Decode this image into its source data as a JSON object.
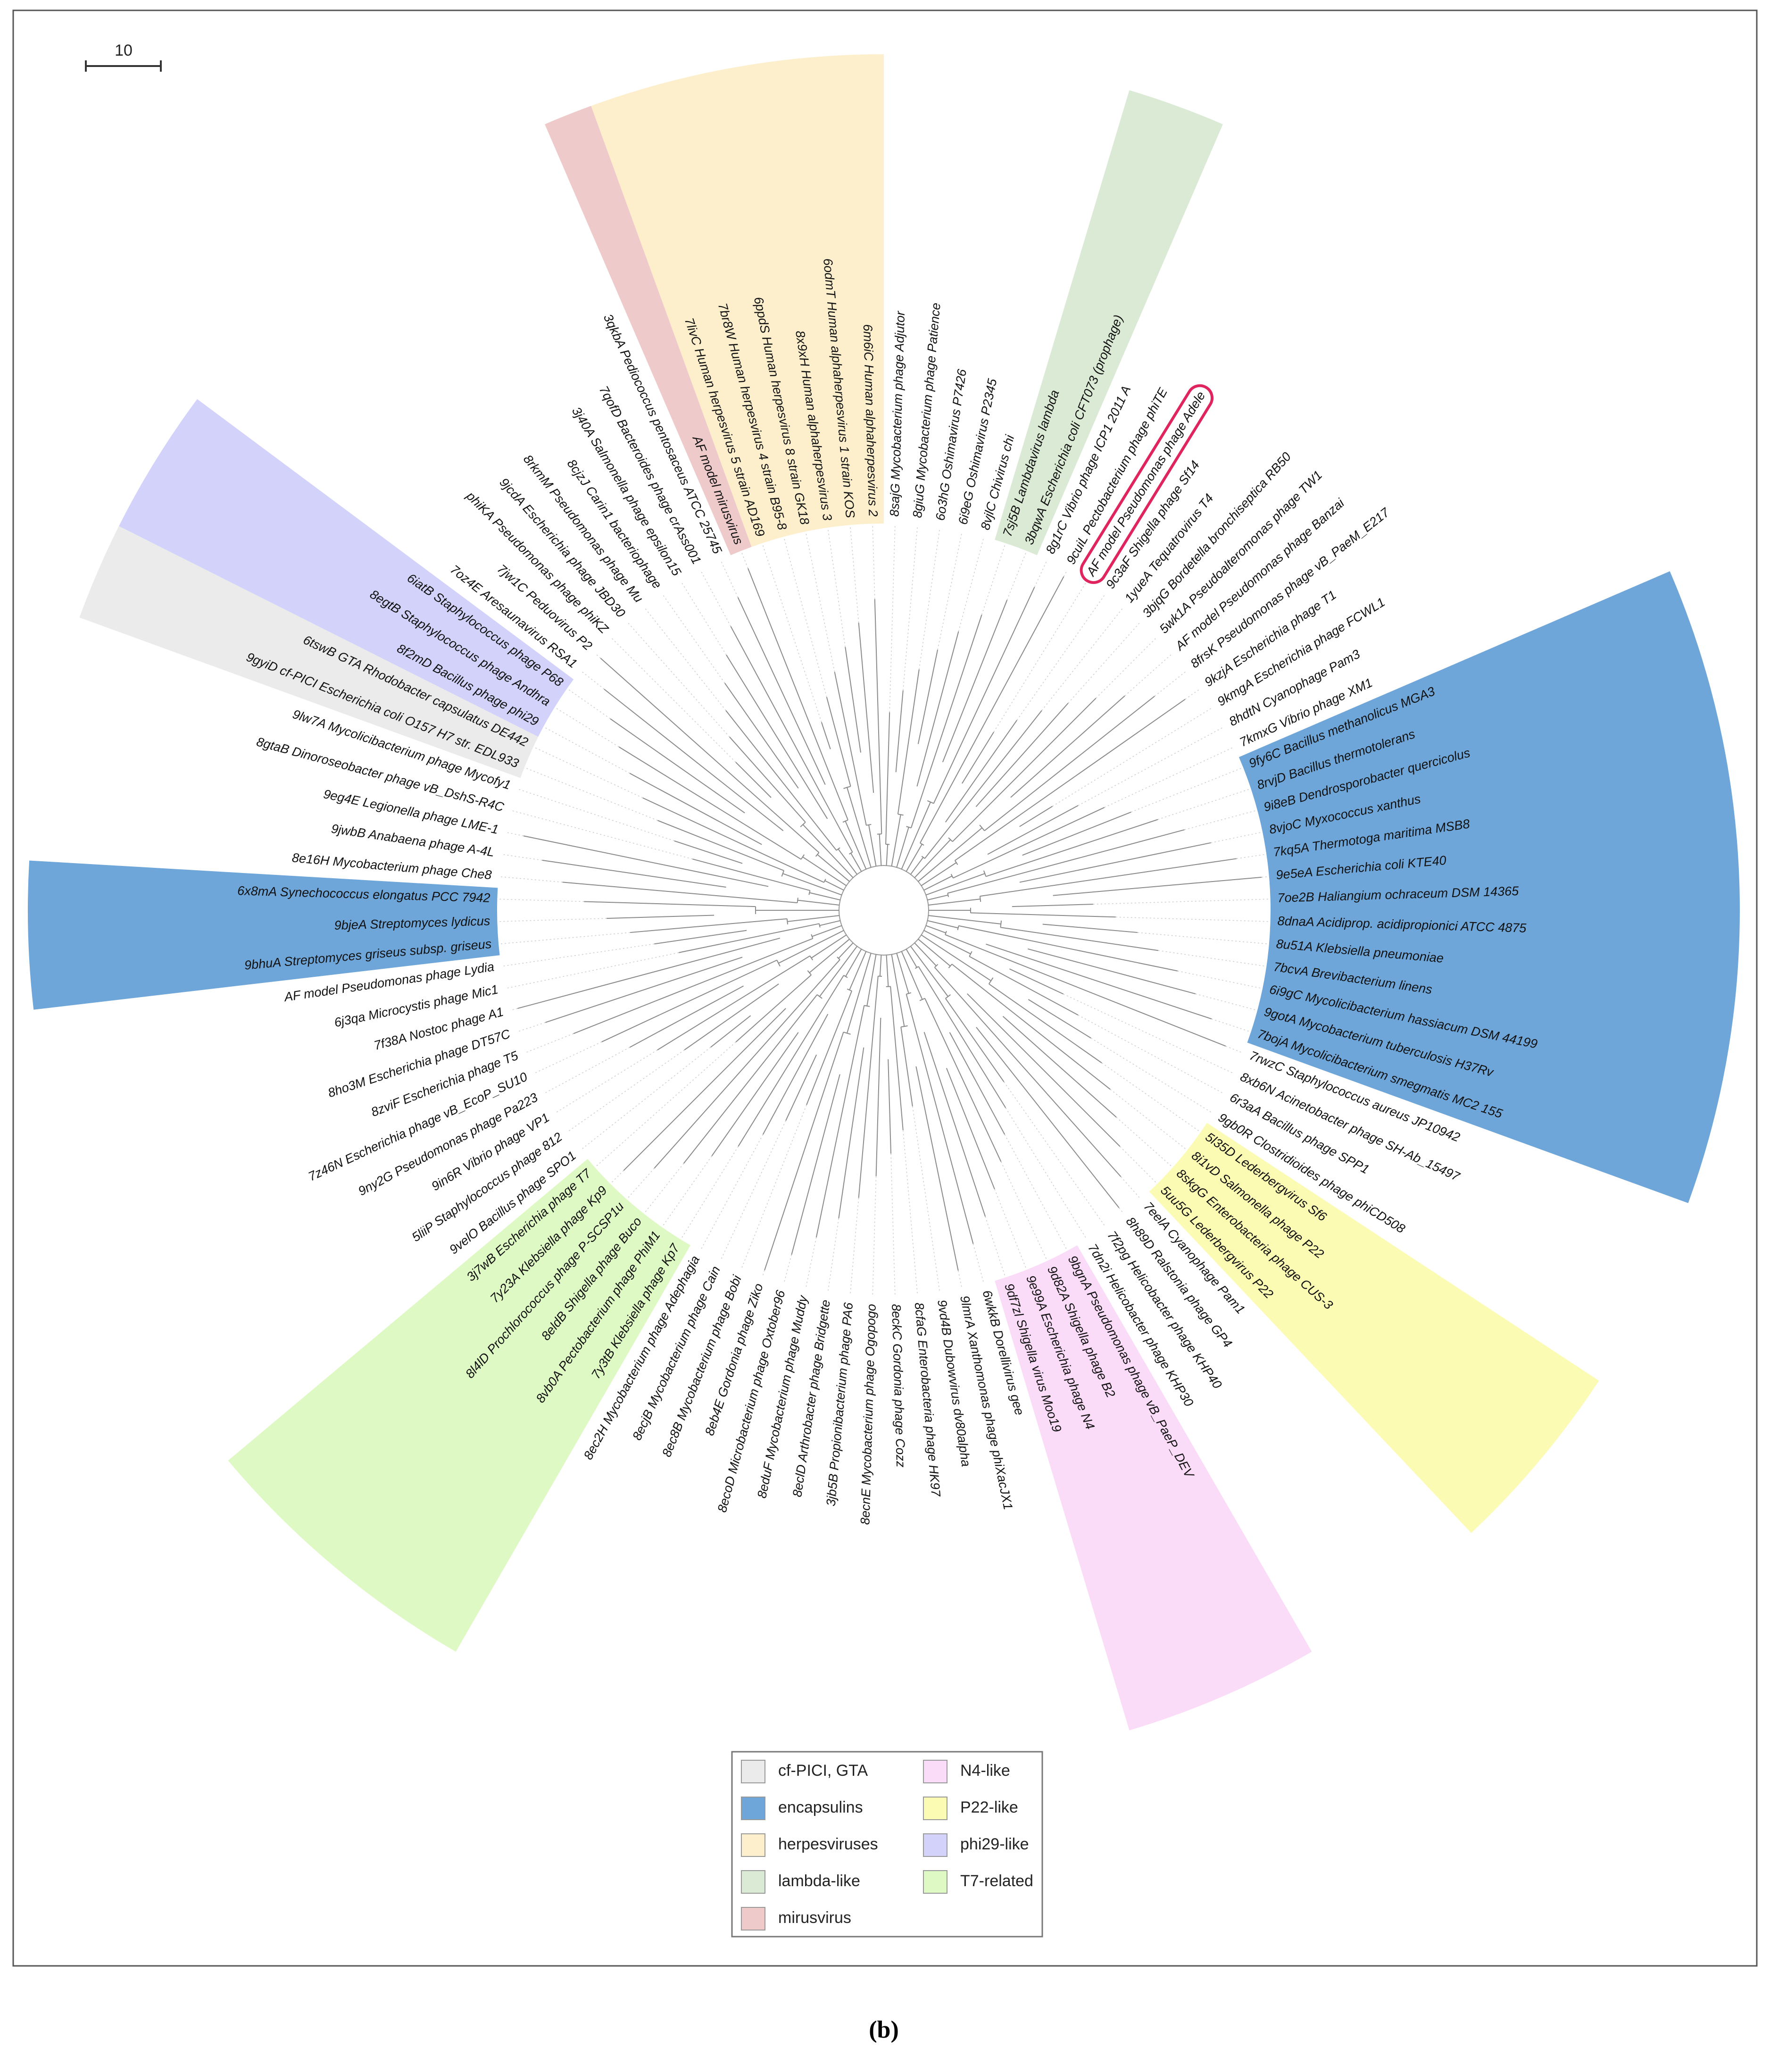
{
  "scale_bar": {
    "label": "10"
  },
  "leaves": [
    {
      "label": "8sajG Mycobacterium phage Adjutor"
    },
    {
      "label": "8giuG Mycobacterium phage Patience"
    },
    {
      "label": "6o3hG Oshimavirus P7426"
    },
    {
      "label": "6i9eG Oshimavirus P2345"
    },
    {
      "label": "8vjlC Chivirus chi"
    },
    {
      "label": "7sj5B Lambdavirus lambda",
      "group": "lambda-like"
    },
    {
      "label": "3bqwA Escherichia coli CFT073 (prophage)",
      "group": "lambda-like"
    },
    {
      "label": "8g1rC Vibrio phage ICP1 2011 A"
    },
    {
      "label": "9cuiL Pectobacterium phage phiTE"
    },
    {
      "label": "AF model Pseudomonas phage Adele",
      "highlighted": true
    },
    {
      "label": "9c3aF Shigella phage Sf14"
    },
    {
      "label": "1yueA Tequatrovirus T4"
    },
    {
      "label": "3bjqG Bordetella bronchiseptica RB50"
    },
    {
      "label": "5wk1A Pseudoalteromonas phage TW1"
    },
    {
      "label": "AF model Pseudomonas phage Banzai"
    },
    {
      "label": "8frsK Pseudomonas phage vB_PaeM_E217"
    },
    {
      "label": "9kzjA Escherichia phage T1"
    },
    {
      "label": "9kmgA Escherichia phage FCWL1"
    },
    {
      "label": "8hdtN Cyanophage Pam3"
    },
    {
      "label": "7kmxG Vibrio phage XM1"
    },
    {
      "label": "9fy6C Bacillus methanolicus MGA3",
      "group": "encapsulins"
    },
    {
      "label": "8rvjD Bacillus thermotolerans",
      "group": "encapsulins"
    },
    {
      "label": "9i8eB Dendrosporobacter quercicolus",
      "group": "encapsulins"
    },
    {
      "label": "8vjoC Myxococcus xanthus",
      "group": "encapsulins"
    },
    {
      "label": "7kq5A Thermotoga maritima MSB8",
      "group": "encapsulins"
    },
    {
      "label": "9e5eA Escherichia coli KTE40",
      "group": "encapsulins"
    },
    {
      "label": "7oe2B Haliangium ochraceum DSM 14365",
      "group": "encapsulins"
    },
    {
      "label": "8dnaA Acidiprop. acidipropionici ATCC 4875",
      "group": "encapsulins"
    },
    {
      "label": "8u51A Klebsiella pneumoniae",
      "group": "encapsulins"
    },
    {
      "label": "7bcvA Brevibacterium linens",
      "group": "encapsulins"
    },
    {
      "label": "6i9gC Mycolicibacterium hassiacum DSM 44199",
      "group": "encapsulins"
    },
    {
      "label": "9gotA Mycobacterium tuberculosis H37Rv",
      "group": "encapsulins"
    },
    {
      "label": "7bojA Mycolicibacterium smegmatis MC2 155",
      "group": "encapsulins"
    },
    {
      "label": "7rwzC Staphylococcus aureus JP10942"
    },
    {
      "label": "8xb6N Acinetobacter phage SH-Ab_15497"
    },
    {
      "label": "6r3aA Bacillus phage SPP1"
    },
    {
      "label": "9gb0R Clostridioides phage phiCD508"
    },
    {
      "label": "5l35D Lederbergvirus Sf6",
      "group": "P22-like"
    },
    {
      "label": "8i1vD Salmonella phage P22",
      "group": "P22-like"
    },
    {
      "label": "8skgG Enterobacteria phage CUS-3",
      "group": "P22-like"
    },
    {
      "label": "5uu5G Lederbergvirus P22",
      "group": "P22-like"
    },
    {
      "label": "7eelA Cyanophage Pam1"
    },
    {
      "label": "8h89D Ralstonia phage GP4"
    },
    {
      "label": "7f2pg Helicobacter phage KHP40"
    },
    {
      "label": "7dn2i Helicobacter phage KHP30"
    },
    {
      "label": "9bgnA Pseudomonas phage vB_PaeP_DEV",
      "group": "N4-like"
    },
    {
      "label": "9d82A Shigella phage B2",
      "group": "N4-like"
    },
    {
      "label": "9e99A Escherichia phage N4",
      "group": "N4-like"
    },
    {
      "label": "9df7zl Shigella virus Moo19",
      "group": "N4-like"
    },
    {
      "label": "6wkkB Dorellivirus gee"
    },
    {
      "label": "9lmrA Xanthomonas phage phiXacJX1"
    },
    {
      "label": "9vd4B Dubowvirus dv80alpha"
    },
    {
      "label": "8cfaG Enterobacteria phage HK97"
    },
    {
      "label": "8eckC Gordonia phage Cozz"
    },
    {
      "label": "8ecnE Mycobacterium phage Ogopogo"
    },
    {
      "label": "3jb5B Propionibacterium phage PA6"
    },
    {
      "label": "8eclD Arthrobacter phage Bridgette"
    },
    {
      "label": "8eduF Mycobacterium phage Muddy"
    },
    {
      "label": "8ecoD Microbacterium phage Oxtober96"
    },
    {
      "label": "8eb4E Gordonia phage Ziko"
    },
    {
      "label": "8ec8B Mycobacterium phage Bobi"
    },
    {
      "label": "8ecjB Mycobacterium phage Cain"
    },
    {
      "label": "8ec2H Mycobacterium phage Adephagia"
    },
    {
      "label": "7y3tB Klebsiella phage Kp7",
      "group": "T7-related"
    },
    {
      "label": "8vb0A Pectobacterium phage PhiM1",
      "group": "T7-related"
    },
    {
      "label": "8eldB Shigella phage Buco",
      "group": "T7-related"
    },
    {
      "label": "8l4lD Prochlorococcus phage P-SCSP1u",
      "group": "T7-related"
    },
    {
      "label": "7y23A Klebsiella phage Kp9",
      "group": "T7-related"
    },
    {
      "label": "3j7wB Escherichia phage T7",
      "group": "T7-related"
    },
    {
      "label": "9velO Bacillus phage SPO1"
    },
    {
      "label": "5liiP Staphylococcus phage 812"
    },
    {
      "label": "9in6R Vibrio phage VP1"
    },
    {
      "label": "9ny2G Pseudomonas phage Pa223"
    },
    {
      "label": "7z46N Escherichia phage vB_EcoP_SU10"
    },
    {
      "label": "8zviF Escherichia phage T5"
    },
    {
      "label": "8ho3M Escherichia phage DT57C"
    },
    {
      "label": "7f38A Nostoc phage A1"
    },
    {
      "label": "6j3qa Microcystis phage Mic1"
    },
    {
      "label": "AF model Pseudomonas phage Lydia"
    },
    {
      "label": "9bhuA Streptomyces griseus subsp. griseus",
      "group": "encapsulins"
    },
    {
      "label": "9bjeA Streptomyces lydicus",
      "group": "encapsulins"
    },
    {
      "label": "6x8mA Synechococcus elongatus PCC 7942",
      "group": "encapsulins"
    },
    {
      "label": "8e16H Mycobacterium phage Che8"
    },
    {
      "label": "9jwbB Anabaena phage A-4L"
    },
    {
      "label": "9eg4E Legionella phage LME-1"
    },
    {
      "label": "8gtaB Dinoroseobacter phage vB_DshS-R4C"
    },
    {
      "label": "9lw7A Mycolicibacterium phage Mycofy1"
    },
    {
      "label": "9gyiD cf-PICI Escherichia coli O157 H7 str. EDL933",
      "group": "cf-PICI, GTA"
    },
    {
      "label": "6tswB GTA Rhodobacter capsulatus DE442",
      "group": "cf-PICI, GTA"
    },
    {
      "label": "8f2mD Bacillus phage phi29",
      "group": "phi29-like"
    },
    {
      "label": "8egtB Staphylococcus phage Andhra",
      "group": "phi29-like"
    },
    {
      "label": "6iatB Staphylococcus phage P68",
      "group": "phi29-like"
    },
    {
      "label": "7oz4E Aresaunavirus RSA1"
    },
    {
      "label": "7jw1C Peduovirus P2"
    },
    {
      "label": "phiKA Pseudomonas phage phiKZ"
    },
    {
      "label": "9jcdA Escherichia phage JBD30"
    },
    {
      "label": "8rkmM Pseudomonas phage Mu"
    },
    {
      "label": "8cjzJ Carin1 bacteriophage"
    },
    {
      "label": "3j40A Salmonella phage epsilon15"
    },
    {
      "label": "7qofD Bacteroides phage crAss001"
    },
    {
      "label": "3qkbA Pediococcus pentosaceus ATCC 25745"
    },
    {
      "label": "AF model mirusvirus",
      "group": "mirusvirus"
    },
    {
      "label": "7livC Human herpesvirus 5 strain AD169",
      "group": "herpesviruses"
    },
    {
      "label": "7br8W Human herpesvirus 4 strain B95-8",
      "group": "herpesviruses"
    },
    {
      "label": "6ppdS Human herpesvirus 8 strain GK18",
      "group": "herpesviruses"
    },
    {
      "label": "8x9xH Human alphaherpesvirus 3",
      "group": "herpesviruses"
    },
    {
      "label": "6odmT Human alphaherpesvirus 1 strain KOS",
      "group": "herpesviruses"
    },
    {
      "label": "6m6iC Human alphaherpesvirus 2",
      "group": "herpesviruses"
    }
  ],
  "legend": [
    {
      "label": "cf-PICI, GTA",
      "color": "#ebebeb"
    },
    {
      "label": "encapsulins",
      "color": "#6ea6da"
    },
    {
      "label": "herpesviruses",
      "color": "#fdefcb"
    },
    {
      "label": "lambda-like",
      "color": "#dbead5"
    },
    {
      "label": "mirusvirus",
      "color": "#efcaca"
    },
    {
      "label": "N4-like",
      "color": "#fbdcf8"
    },
    {
      "label": "P22-like",
      "color": "#fcfbb4"
    },
    {
      "label": "phi29-like",
      "color": "#d3d2fb"
    },
    {
      "label": "T7-related",
      "color": "#def9c4"
    }
  ],
  "caption": "(b)"
}
